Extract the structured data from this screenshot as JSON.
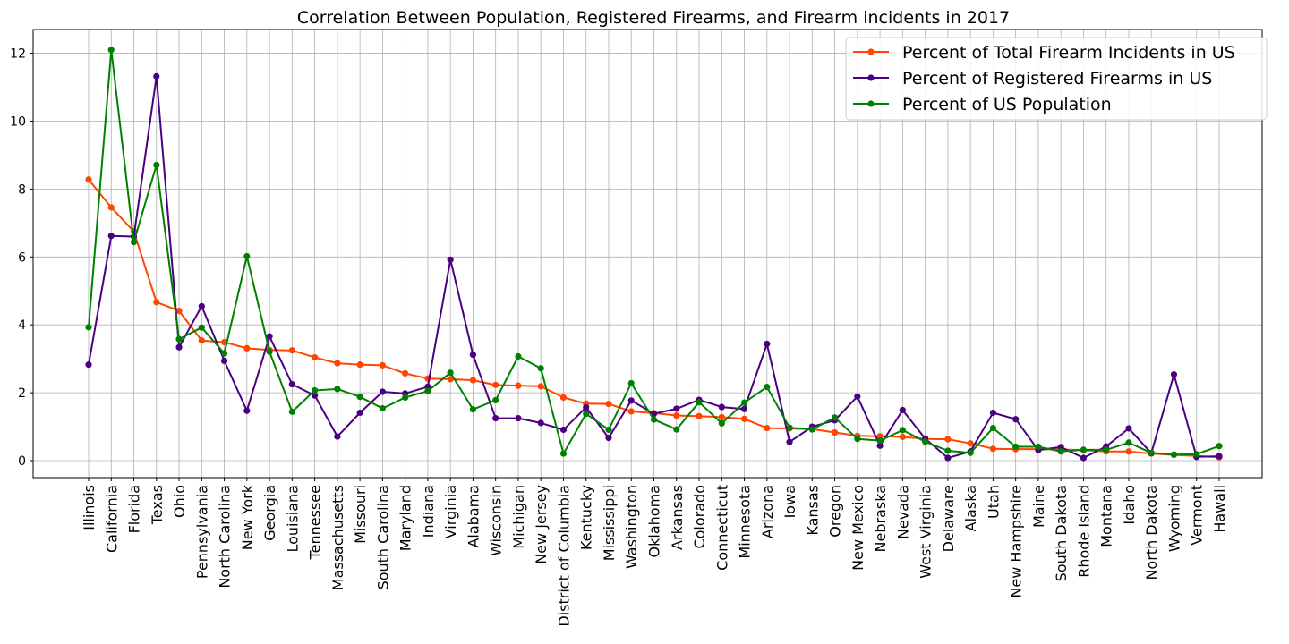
{
  "chart_data": {
    "type": "line",
    "title": "Correlation Between Population, Registered Firearms, and Firearm incidents in 2017",
    "xlabel": "",
    "ylabel": "",
    "ylim": [
      -0.5,
      12.7
    ],
    "yticks": [
      0,
      2,
      4,
      6,
      8,
      10,
      12
    ],
    "grid": true,
    "legend_position": "top-right",
    "categories": [
      "Illinois",
      "California",
      "Florida",
      "Texas",
      "Ohio",
      "Pennsylvania",
      "North Carolina",
      "New York",
      "Georgia",
      "Louisiana",
      "Tennessee",
      "Massachusetts",
      "Missouri",
      "South Carolina",
      "Maryland",
      "Indiana",
      "Virginia",
      "Alabama",
      "Wisconsin",
      "Michigan",
      "New Jersey",
      "District of Columbia",
      "Kentucky",
      "Mississippi",
      "Washington",
      "Oklahoma",
      "Arkansas",
      "Colorado",
      "Connecticut",
      "Minnesota",
      "Arizona",
      "Iowa",
      "Kansas",
      "Oregon",
      "New Mexico",
      "Nebraska",
      "Nevada",
      "West Virginia",
      "Delaware",
      "Alaska",
      "Utah",
      "New Hampshire",
      "Maine",
      "South Dakota",
      "Rhode Island",
      "Montana",
      "Idaho",
      "North Dakota",
      "Wyoming",
      "Vermont",
      "Hawaii"
    ],
    "series": [
      {
        "name": "Percent of Total Firearm Incidents in US",
        "color": "#ff4500",
        "values": [
          8.28,
          7.46,
          6.75,
          4.67,
          4.41,
          3.54,
          3.49,
          3.31,
          3.26,
          3.25,
          3.04,
          2.87,
          2.83,
          2.81,
          2.57,
          2.42,
          2.4,
          2.37,
          2.23,
          2.21,
          2.19,
          1.86,
          1.68,
          1.67,
          1.45,
          1.4,
          1.33,
          1.31,
          1.28,
          1.23,
          0.96,
          0.95,
          0.93,
          0.83,
          0.73,
          0.72,
          0.7,
          0.64,
          0.63,
          0.51,
          0.35,
          0.34,
          0.34,
          0.33,
          0.31,
          0.27,
          0.27,
          0.21,
          0.17,
          0.14,
          0.1
        ]
      },
      {
        "name": "Percent of Registered Firearms in US",
        "color": "#4b0082",
        "values": [
          2.83,
          6.62,
          6.6,
          11.32,
          3.34,
          4.55,
          2.94,
          1.47,
          3.66,
          2.25,
          1.92,
          0.71,
          1.41,
          2.03,
          1.98,
          2.18,
          5.92,
          3.12,
          1.25,
          1.25,
          1.11,
          0.91,
          1.57,
          0.67,
          1.77,
          1.38,
          1.53,
          1.79,
          1.58,
          1.52,
          3.44,
          0.55,
          1.0,
          1.19,
          1.89,
          0.44,
          1.49,
          0.65,
          0.08,
          0.27,
          1.41,
          1.22,
          0.31,
          0.4,
          0.08,
          0.42,
          0.95,
          0.22,
          2.54,
          0.11,
          0.13
        ]
      },
      {
        "name": "Percent of US Population",
        "color": "#008000",
        "values": [
          3.93,
          12.1,
          6.44,
          8.71,
          3.58,
          3.92,
          3.16,
          6.02,
          3.21,
          1.44,
          2.07,
          2.11,
          1.88,
          1.54,
          1.86,
          2.05,
          2.59,
          1.51,
          1.78,
          3.07,
          2.72,
          0.21,
          1.38,
          0.91,
          2.28,
          1.21,
          0.92,
          1.72,
          1.1,
          1.71,
          2.17,
          0.97,
          0.92,
          1.27,
          0.64,
          0.59,
          0.9,
          0.56,
          0.29,
          0.23,
          0.96,
          0.41,
          0.41,
          0.27,
          0.32,
          0.32,
          0.53,
          0.23,
          0.18,
          0.19,
          0.43
        ]
      }
    ]
  }
}
